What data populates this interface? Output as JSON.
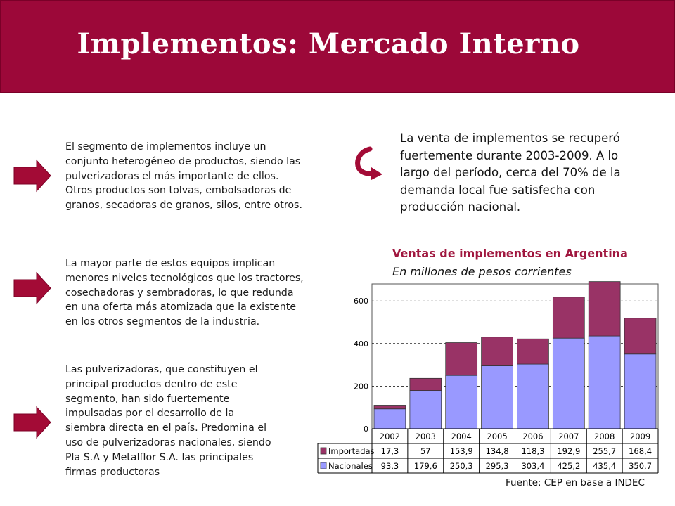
{
  "header": {
    "title": "Implementos: Mercado Interno"
  },
  "bullets": [
    {
      "lines": [
        "El segmento de implementos incluye un",
        "conjunto heterogéneo de productos, siendo las",
        "pulverizadoras el más importante de ellos.",
        "Otros productos son tolvas, embolsadoras de",
        "granos, secadoras de granos, silos, entre otros."
      ]
    },
    {
      "lines": [
        "La mayor parte de estos equipos implican",
        "menores niveles tecnológicos que los tractores,",
        "cosechadoras y sembradoras, lo que redunda",
        "en una oferta más atomizada que la existente",
        "en los otros segmentos de la industria."
      ]
    },
    {
      "lines": [
        "Las pulverizadoras, que constituyen el",
        "principal productos dentro de este",
        "segmento, han sido fuertemente",
        "impulsadas por el desarrollo de la",
        "siembra directa en el país. Predomina el",
        "uso de pulverizadoras nacionales, siendo",
        "Pla S.A y Metalflor S.A. las principales",
        "firmas productoras"
      ]
    }
  ],
  "intro": {
    "lines": [
      "La venta de implementos se recuperó",
      "fuertemente durante 2003-2009.  A lo",
      "largo del período, cerca del 70% de la",
      "demanda local fue satisfecha con",
      "producción nacional."
    ]
  },
  "chart_title": "Ventas de implementos en Argentina",
  "chart_subtitle": "En millones de pesos corrientes",
  "source": "Fuente: CEP en base a INDEC",
  "colors": {
    "header": "#9c0839",
    "importadas": "#993366",
    "nacionales": "#9999ff",
    "arrow": "#a30b36",
    "title_accent": "#a0173f"
  },
  "icons": [
    "arrow-right-icon",
    "curved-arrow-icon"
  ],
  "chart_data": {
    "type": "bar",
    "stacked": true,
    "categories": [
      "2002",
      "2003",
      "2004",
      "2005",
      "2006",
      "2007",
      "2008",
      "2009"
    ],
    "series": [
      {
        "name": "Nacionales",
        "values": [
          93.3,
          179.6,
          250.3,
          295.3,
          303.4,
          425.2,
          435.4,
          350.7
        ],
        "labels": [
          "93,3",
          "179,6",
          "250,3",
          "295,3",
          "303,4",
          "425,2",
          "435,4",
          "350,7"
        ]
      },
      {
        "name": "Importadas",
        "values": [
          17.3,
          57,
          153.9,
          134.8,
          118.3,
          192.9,
          255.7,
          168.4
        ],
        "labels": [
          "17,3",
          "57",
          "153,9",
          "134,8",
          "118,3",
          "192,9",
          "255,7",
          "168,4"
        ]
      }
    ],
    "yticks": [
      "0",
      "200",
      "400",
      "600"
    ],
    "ylim": [
      0,
      680
    ],
    "grid": true,
    "legend": "data-table"
  }
}
